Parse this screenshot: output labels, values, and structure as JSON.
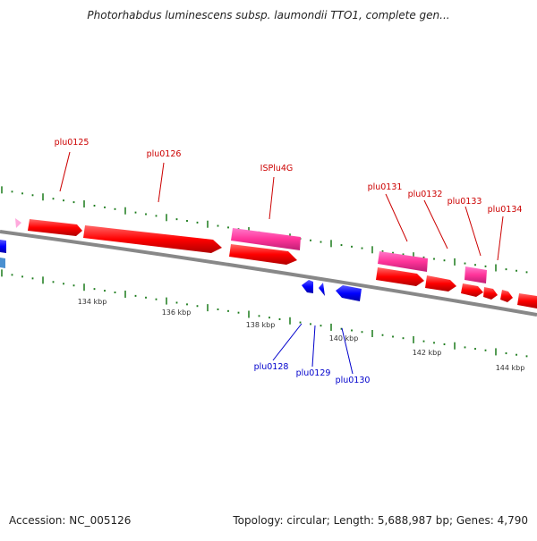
{
  "header": {
    "title": "Photorhabdus luminescens subsp. laumondii TTO1, complete gen..."
  },
  "footer": {
    "accession": "Accession: NC_005126",
    "summary": "Topology: circular; Length: 5,688,987 bp; Genes: 4,790"
  },
  "colors": {
    "backbone": "#808080",
    "gene_forward": "#ff0000",
    "gene_reverse": "#0000ff",
    "mobile_element": "#ff3399",
    "forward_label": "#cc0000",
    "reverse_label": "#0000cc",
    "tick": "#1a7a1a"
  },
  "ruler": {
    "labels": [
      "134 kbp",
      "136 kbp",
      "138 kbp",
      "140 kbp",
      "142 kbp",
      "144 kbp"
    ]
  },
  "gene_labels": {
    "forward": [
      "plu0125",
      "plu0126",
      "ISPlu4G",
      "plu0131",
      "plu0132",
      "plu0133",
      "plu0134"
    ],
    "reverse": [
      "plu0128",
      "plu0129",
      "plu0130"
    ]
  }
}
